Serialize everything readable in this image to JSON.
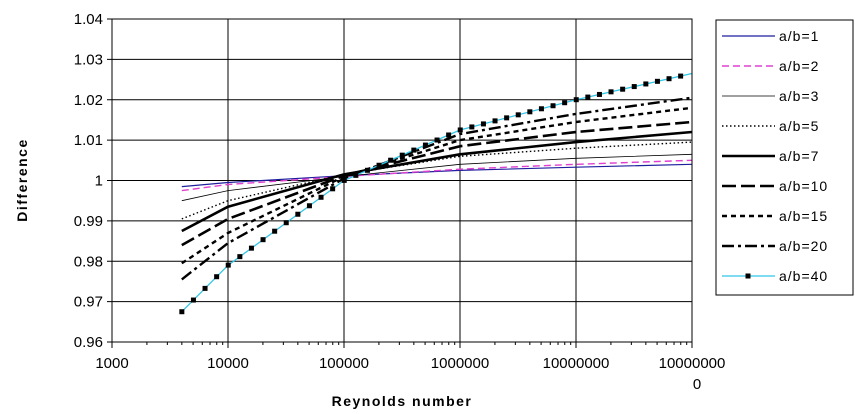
{
  "chart_data": {
    "type": "line",
    "title": "",
    "xlabel": "Reynolds number",
    "ylabel": "Difference",
    "x_scale": "log",
    "xlim": [
      1000,
      100000000
    ],
    "ylim": [
      0.96,
      1.04
    ],
    "x_ticks": [
      1000,
      10000,
      100000,
      1000000,
      10000000,
      100000000
    ],
    "x_tick_labels": [
      {
        "line1": "1000",
        "line2": ""
      },
      {
        "line1": "10000",
        "line2": ""
      },
      {
        "line1": "100000",
        "line2": ""
      },
      {
        "line1": "1000000",
        "line2": ""
      },
      {
        "line1": "10000000",
        "line2": ""
      },
      {
        "line1": "10000000",
        "line2": "0"
      }
    ],
    "y_ticks": [
      "0.96",
      "0.97",
      "0.98",
      "0.99",
      "1",
      "1.01",
      "1.02",
      "1.03",
      "1.04"
    ],
    "grid": "major",
    "legend_position": "right",
    "series": [
      {
        "name": "a/b=1",
        "color": "#1f1f9e",
        "style": "solid-thin",
        "points": [
          [
            4000,
            0.9985
          ],
          [
            10000,
            0.9995
          ],
          [
            100000,
            1.0012
          ],
          [
            1000000,
            1.0025
          ],
          [
            10000000,
            1.0033
          ],
          [
            100000000,
            1.004
          ]
        ]
      },
      {
        "name": "a/b=2",
        "color": "#e040d0",
        "style": "dashed-thin",
        "points": [
          [
            4000,
            0.9975
          ],
          [
            10000,
            0.999
          ],
          [
            100000,
            1.001
          ],
          [
            1000000,
            1.0028
          ],
          [
            10000000,
            1.004
          ],
          [
            100000000,
            1.005
          ]
        ]
      },
      {
        "name": "a/b=3",
        "color": "#000000",
        "style": "solid-hair",
        "points": [
          [
            4000,
            0.995
          ],
          [
            10000,
            0.9975
          ],
          [
            100000,
            1.001
          ],
          [
            1000000,
            1.004
          ],
          [
            10000000,
            1.0055
          ],
          [
            100000000,
            1.0065
          ]
        ]
      },
      {
        "name": "a/b=5",
        "color": "#000000",
        "style": "dotted",
        "points": [
          [
            4000,
            0.9905
          ],
          [
            10000,
            0.995
          ],
          [
            100000,
            1.0015
          ],
          [
            1000000,
            1.006
          ],
          [
            10000000,
            1.008
          ],
          [
            100000000,
            1.0095
          ]
        ]
      },
      {
        "name": "a/b=7",
        "color": "#000000",
        "style": "solid-thick",
        "points": [
          [
            4000,
            0.9875
          ],
          [
            10000,
            0.9935
          ],
          [
            100000,
            1.0015
          ],
          [
            1000000,
            1.0065
          ],
          [
            10000000,
            1.0095
          ],
          [
            100000000,
            1.012
          ]
        ]
      },
      {
        "name": "a/b=10",
        "color": "#000000",
        "style": "long-dash",
        "points": [
          [
            4000,
            0.984
          ],
          [
            10000,
            0.9905
          ],
          [
            100000,
            1.0012
          ],
          [
            1000000,
            1.0085
          ],
          [
            10000000,
            1.012
          ],
          [
            100000000,
            1.0145
          ]
        ]
      },
      {
        "name": "a/b=15",
        "color": "#000000",
        "style": "short-dash",
        "points": [
          [
            4000,
            0.9795
          ],
          [
            10000,
            0.987
          ],
          [
            100000,
            1.001
          ],
          [
            1000000,
            1.01
          ],
          [
            10000000,
            1.0145
          ],
          [
            100000000,
            1.018
          ]
        ]
      },
      {
        "name": "a/b=20",
        "color": "#000000",
        "style": "dash-dot",
        "points": [
          [
            4000,
            0.9755
          ],
          [
            10000,
            0.9845
          ],
          [
            100000,
            1.0005
          ],
          [
            1000000,
            1.0115
          ],
          [
            10000000,
            1.0165
          ],
          [
            100000000,
            1.0205
          ]
        ]
      },
      {
        "name": "a/b=40",
        "color": "#33c6e6",
        "style": "solid-markers",
        "points": [
          [
            4000,
            0.9675
          ],
          [
            10000,
            0.979
          ],
          [
            100000,
            1.0
          ],
          [
            1000000,
            1.0125
          ],
          [
            10000000,
            1.02
          ],
          [
            100000000,
            1.0265
          ]
        ]
      }
    ]
  }
}
